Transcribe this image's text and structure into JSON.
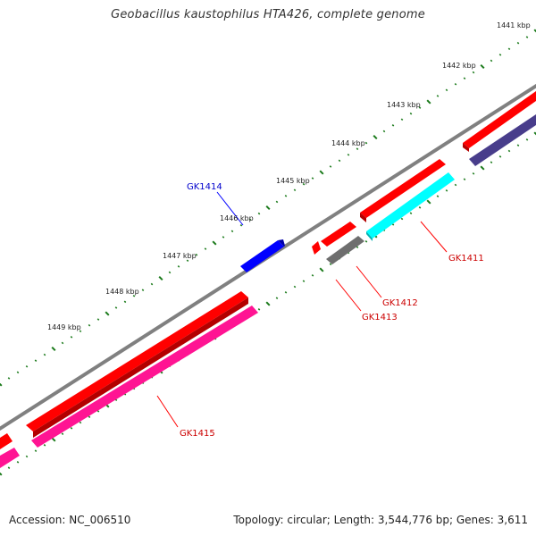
{
  "title": "Geobacillus kaustophilus HTA426, complete genome",
  "footer": {
    "accession": "Accession: NC_006510",
    "summary": "Topology: circular; Length: 3,544,776 bp; Genes: 3,611"
  },
  "ruler": {
    "labels": [
      "1441 kbp",
      "1442 kbp",
      "1443 kbp",
      "1444 kbp",
      "1445 kbp",
      "1446 kbp",
      "1447 kbp",
      "1448 kbp",
      "1449 kbp"
    ],
    "tick_color": "#1a7a1a"
  },
  "colors": {
    "backbone": "#808080",
    "cds_forward": "#ff0000",
    "cds_reverse": "#ff1493",
    "gene_blue": "#0000ff",
    "gene_cyan": "#00ffff",
    "gene_gray": "#6e6e6e",
    "gene_navy": "#483d8b",
    "label_red": "#cc0000",
    "label_blue": "#0000cc"
  },
  "gene_labels": [
    {
      "id": "GK1414",
      "color": "label_blue"
    },
    {
      "id": "GK1411",
      "color": "label_red"
    },
    {
      "id": "GK1412",
      "color": "label_red"
    },
    {
      "id": "GK1413",
      "color": "label_red"
    },
    {
      "id": "GK1415",
      "color": "label_red"
    }
  ]
}
